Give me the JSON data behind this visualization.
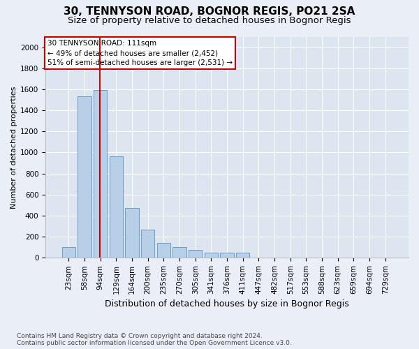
{
  "title1": "30, TENNYSON ROAD, BOGNOR REGIS, PO21 2SA",
  "title2": "Size of property relative to detached houses in Bognor Regis",
  "xlabel": "Distribution of detached houses by size in Bognor Regis",
  "ylabel": "Number of detached properties",
  "categories": [
    "23sqm",
    "58sqm",
    "94sqm",
    "129sqm",
    "164sqm",
    "200sqm",
    "235sqm",
    "270sqm",
    "305sqm",
    "341sqm",
    "376sqm",
    "411sqm",
    "447sqm",
    "482sqm",
    "517sqm",
    "553sqm",
    "588sqm",
    "623sqm",
    "659sqm",
    "694sqm",
    "729sqm"
  ],
  "values": [
    100,
    1530,
    1590,
    960,
    470,
    270,
    140,
    100,
    75,
    50,
    50,
    50,
    0,
    0,
    0,
    0,
    0,
    0,
    0,
    0,
    0
  ],
  "bar_color": "#b8cfe8",
  "bar_edge_color": "#6699cc",
  "background_color": "#eaeef6",
  "plot_bg_color": "#dde6f0",
  "vline_x": 1.97,
  "vline_color": "#cc0000",
  "annotation_line1": "30 TENNYSON ROAD: 111sqm",
  "annotation_line2": "← 49% of detached houses are smaller (2,452)",
  "annotation_line3": "51% of semi-detached houses are larger (2,531) →",
  "annotation_box_facecolor": "#ffffff",
  "annotation_box_edgecolor": "#cc0000",
  "ylim": [
    0,
    2100
  ],
  "yticks": [
    0,
    200,
    400,
    600,
    800,
    1000,
    1200,
    1400,
    1600,
    1800,
    2000
  ],
  "footnote": "Contains HM Land Registry data © Crown copyright and database right 2024.\nContains public sector information licensed under the Open Government Licence v3.0.",
  "title1_fontsize": 11,
  "title2_fontsize": 9.5,
  "xlabel_fontsize": 9,
  "ylabel_fontsize": 8,
  "tick_fontsize": 7.5,
  "annotation_fontsize": 7.5,
  "footnote_fontsize": 6.5
}
